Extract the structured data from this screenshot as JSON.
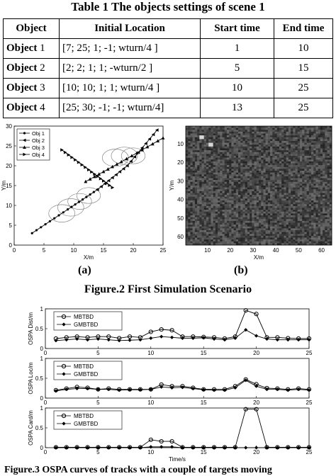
{
  "table": {
    "title": "Table 1 The objects settings of scene 1",
    "headers": [
      "Object",
      "Initial Location",
      "Start time",
      "End time"
    ],
    "rows": [
      {
        "obj_word": "Object",
        "obj_num": "1",
        "location": "[7; 25; 1; -1; wturn/4 ]",
        "start": "1",
        "end": "10"
      },
      {
        "obj_word": "Object",
        "obj_num": "2",
        "location": "[2; 2; 1; 1; -wturn/2 ]",
        "start": "5",
        "end": "15"
      },
      {
        "obj_word": "Object",
        "obj_num": "3",
        "location": "[10; 10; 1; 1; wturn/4 ]",
        "start": "10",
        "end": "25"
      },
      {
        "obj_word": "Object",
        "obj_num": "4",
        "location": "[25; 30; -1; -1; wturn/4]",
        "start": "13",
        "end": "25"
      }
    ]
  },
  "figure2": {
    "caption": "Figure.2 First Simulation Scenario",
    "panel_a_label": "(a)",
    "panel_b_label": "(b)"
  },
  "figure3": {
    "caption": "Figure.3 OSPA curves of tracks with a couple of  targets moving"
  },
  "chart_data": [
    {
      "type": "line",
      "panel": "(a)",
      "xlabel": "X/m",
      "ylabel": "Y/m",
      "xlim": [
        0,
        25
      ],
      "ylim": [
        0,
        30
      ],
      "xticks": [
        "0",
        "5",
        "10",
        "15",
        "20",
        "25"
      ],
      "yticks": [
        "0",
        "5",
        "10",
        "15",
        "20",
        "25",
        "30"
      ],
      "legend": [
        "Obj 1",
        "Obj 2",
        "Obj 3",
        "Obj 4"
      ],
      "legend_position": "top-left",
      "series": [
        {
          "name": "Obj 1",
          "points": [
            [
              3,
              3
            ],
            [
              9,
              9
            ],
            [
              14,
              14
            ]
          ]
        },
        {
          "name": "Obj 2",
          "points": [
            [
              14,
              14
            ],
            [
              19,
              20
            ],
            [
              24,
              29
            ]
          ]
        },
        {
          "name": "Obj 3",
          "points": [
            [
              12,
              16
            ],
            [
              18,
              21
            ],
            [
              25,
              27
            ]
          ]
        },
        {
          "name": "Obj 4",
          "points": [
            [
              8,
              24
            ],
            [
              12.5,
              19
            ],
            [
              16.5,
              14.5
            ]
          ]
        }
      ],
      "ellipses": [
        {
          "x": 8,
          "y": 8,
          "rx": 2.2,
          "ry": 2.2
        },
        {
          "x": 9.5,
          "y": 9.5,
          "rx": 2.2,
          "ry": 2.2
        },
        {
          "x": 11,
          "y": 11,
          "rx": 2,
          "ry": 2
        },
        {
          "x": 12.5,
          "y": 12.5,
          "rx": 2,
          "ry": 2
        },
        {
          "x": 17,
          "y": 22,
          "rx": 2.2,
          "ry": 2.2
        },
        {
          "x": 18.5,
          "y": 22.5,
          "rx": 2.2,
          "ry": 2.2
        },
        {
          "x": 20,
          "y": 22.5,
          "rx": 2,
          "ry": 2
        }
      ]
    },
    {
      "type": "heatmap",
      "panel": "(b)",
      "xlabel": "X/m",
      "ylabel": "Y/m",
      "xticks": [
        "10",
        "20",
        "30",
        "40",
        "50",
        "60"
      ],
      "yticks": [
        "10",
        "20",
        "30",
        "40",
        "50",
        "60"
      ],
      "grid_size": 64,
      "bright_spots": [
        [
          7,
          6
        ],
        [
          11,
          10
        ]
      ]
    },
    {
      "type": "line",
      "ylabel": "OSPA Dist/m",
      "xlim": [
        0,
        25
      ],
      "ylim": [
        0,
        1
      ],
      "xticks": [
        "0",
        "5",
        "10",
        "15",
        "20",
        "25"
      ],
      "yticks": [
        "0",
        "0.5",
        "1"
      ],
      "legend_position": "top-left",
      "x": [
        1,
        2,
        3,
        4,
        5,
        6,
        7,
        8,
        9,
        10,
        11,
        12,
        13,
        14,
        15,
        16,
        17,
        18,
        19,
        20,
        21,
        22,
        23,
        24,
        25
      ],
      "series": [
        {
          "name": "MBTBD",
          "values": [
            0.25,
            0.28,
            0.3,
            0.28,
            0.3,
            0.3,
            0.26,
            0.3,
            0.28,
            0.42,
            0.48,
            0.46,
            0.3,
            0.3,
            0.29,
            0.28,
            0.25,
            0.3,
            0.96,
            0.87,
            0.28,
            0.28,
            0.26,
            0.25,
            0.25
          ]
        },
        {
          "name": "GMBTBD",
          "values": [
            0.2,
            0.22,
            0.24,
            0.22,
            0.24,
            0.22,
            0.2,
            0.21,
            0.22,
            0.26,
            0.3,
            0.28,
            0.26,
            0.26,
            0.27,
            0.24,
            0.22,
            0.26,
            0.47,
            0.32,
            0.24,
            0.22,
            0.22,
            0.22,
            0.22
          ]
        }
      ]
    },
    {
      "type": "line",
      "ylabel": "OSPA Loc/m",
      "xlim": [
        0,
        25
      ],
      "ylim": [
        0,
        1
      ],
      "xticks": [
        "0",
        "5",
        "10",
        "15",
        "20",
        "25"
      ],
      "yticks": [
        "0",
        "0.5",
        "1"
      ],
      "legend_position": "top-left",
      "x": [
        1,
        2,
        3,
        4,
        5,
        6,
        7,
        8,
        9,
        10,
        11,
        12,
        13,
        14,
        15,
        16,
        17,
        18,
        19,
        20,
        21,
        22,
        23,
        24,
        25
      ],
      "series": [
        {
          "name": "MBTBD",
          "values": [
            0.2,
            0.24,
            0.28,
            0.26,
            0.22,
            0.24,
            0.22,
            0.22,
            0.22,
            0.22,
            0.34,
            0.3,
            0.3,
            0.26,
            0.22,
            0.22,
            0.22,
            0.3,
            0.47,
            0.35,
            0.25,
            0.24,
            0.22,
            0.24,
            0.22
          ]
        },
        {
          "name": "GMBTBD",
          "values": [
            0.18,
            0.22,
            0.24,
            0.24,
            0.22,
            0.22,
            0.2,
            0.21,
            0.21,
            0.22,
            0.28,
            0.26,
            0.27,
            0.24,
            0.21,
            0.2,
            0.2,
            0.26,
            0.45,
            0.3,
            0.22,
            0.22,
            0.2,
            0.22,
            0.2
          ]
        }
      ]
    },
    {
      "type": "line",
      "ylabel": "OSPA Card/m",
      "xlabel": "Time/s",
      "xlim": [
        0,
        25
      ],
      "ylim": [
        0,
        1
      ],
      "xticks": [
        "0",
        "5",
        "10",
        "15",
        "20",
        "25"
      ],
      "yticks": [
        "0",
        "0.5",
        "1"
      ],
      "legend_position": "top-left",
      "x": [
        1,
        2,
        3,
        4,
        5,
        6,
        7,
        8,
        9,
        10,
        11,
        12,
        13,
        14,
        15,
        16,
        17,
        18,
        19,
        20,
        21,
        22,
        23,
        24,
        25
      ],
      "series": [
        {
          "name": "MBTBD",
          "values": [
            0.01,
            0.01,
            0.01,
            0.01,
            0.01,
            0.01,
            0.01,
            0.01,
            0.01,
            0.2,
            0.16,
            0.16,
            0.01,
            0.01,
            0.01,
            0.01,
            0.01,
            0.01,
            0.97,
            0.97,
            0.01,
            0.01,
            0.01,
            0.01,
            0.01
          ]
        },
        {
          "name": "GMBTBD",
          "values": [
            0.0,
            0.0,
            0.0,
            0.0,
            0.0,
            0.0,
            0.0,
            0.0,
            0.0,
            0.02,
            0.02,
            0.02,
            0.0,
            0.0,
            0.0,
            0.0,
            0.0,
            0.0,
            0.0,
            0.0,
            0.0,
            0.0,
            0.0,
            0.0,
            0.0
          ]
        }
      ]
    }
  ]
}
